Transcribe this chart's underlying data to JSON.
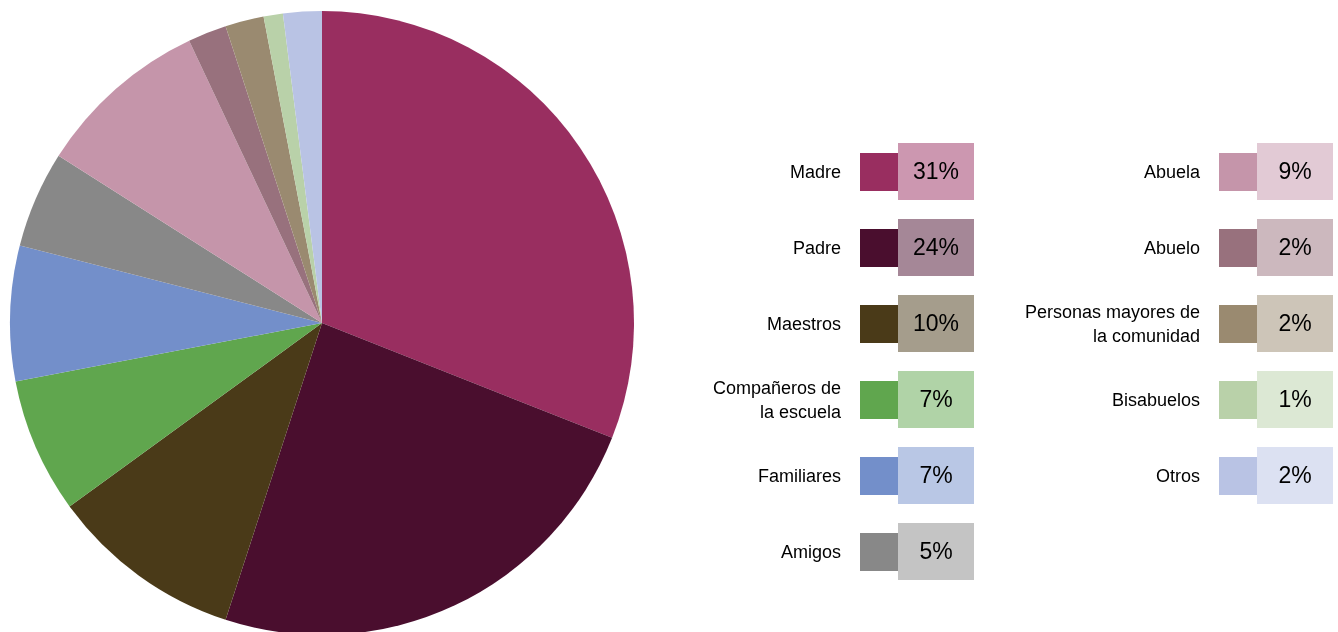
{
  "chart_data": {
    "type": "pie",
    "categories": [
      "Madre",
      "Padre",
      "Maestros",
      "Compañeros de la escuela",
      "Familiares",
      "Amigos",
      "Abuela",
      "Abuelo",
      "Personas mayores de la comunidad",
      "Bisabuelos",
      "Otros"
    ],
    "values": [
      31,
      24,
      10,
      7,
      7,
      5,
      9,
      2,
      2,
      1,
      2
    ],
    "colors": [
      "#992e60",
      "#4a0e2e",
      "#4a3a18",
      "#60a64e",
      "#738fca",
      "#888888",
      "#c595aa",
      "#98717d",
      "#9a8a70",
      "#b9d1a9",
      "#b9c3e4"
    ],
    "value_labels": [
      "31%",
      "24%",
      "10%",
      "7%",
      "7%",
      "5%",
      "9%",
      "2%",
      "2%",
      "1%",
      "2%"
    ],
    "legend": "right"
  }
}
